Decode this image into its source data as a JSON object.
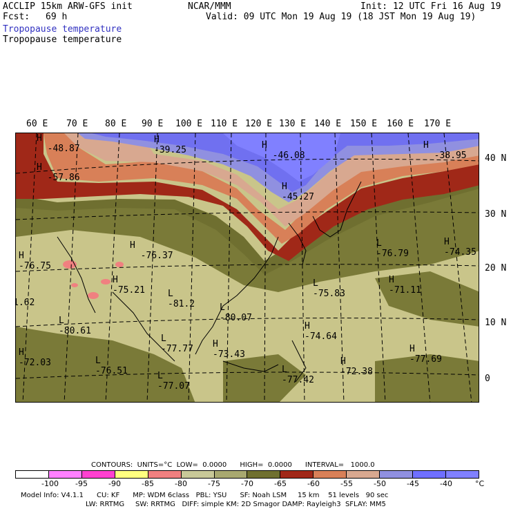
{
  "header": {
    "model": "ACCLIP 15km ARW-GFS init",
    "org": "NCAR/MMM",
    "init": "Init: 12 UTC Fri 16 Aug 19",
    "fcst_label": "Fcst:",
    "fcst_value": "69 h",
    "valid": "Valid: 09 UTC Mon 19 Aug 19 (18 JST Mon 19 Aug 19)",
    "field1": "Tropopause temperature",
    "field2": "Tropopause temperature"
  },
  "lon_labels": [
    "60 E",
    "70 E",
    "80 E",
    "90 E",
    "100 E",
    "110 E",
    "120 E",
    "130 E",
    "140 E",
    "150 E",
    "160 E",
    "170 E"
  ],
  "lat_labels": [
    "40 N",
    "30 N",
    "20 N",
    "10 N",
    "0"
  ],
  "extrema": [
    {
      "mark": "H",
      "value": "-48.87"
    },
    {
      "mark": "H",
      "value": "-39.25"
    },
    {
      "mark": "H",
      "value": "-46.08"
    },
    {
      "mark": "H",
      "value": "-38.95"
    },
    {
      "mark": "H",
      "value": "-57.86"
    },
    {
      "mark": "H",
      "value": "-45.27"
    },
    {
      "mark": "H",
      "value": "-76.37"
    },
    {
      "mark": "H",
      "value": "-76.75"
    },
    {
      "mark": "L",
      "value": "-76.79"
    },
    {
      "mark": "H",
      "value": "-74.35"
    },
    {
      "mark": "H",
      "value": "-75.21"
    },
    {
      "mark": "L",
      "value": "-81.2"
    },
    {
      "mark": "L",
      "value": "-80.07"
    },
    {
      "mark": "L",
      "value": "-75.83"
    },
    {
      "mark": "H",
      "value": "-71.11"
    },
    {
      "mark": "L",
      "value": "-80.61"
    },
    {
      "mark": "H",
      "value": "-74.64"
    },
    {
      "mark": "H",
      "value": "-72.03"
    },
    {
      "mark": "L",
      "value": "-76.51"
    },
    {
      "mark": "H",
      "value": "-73.43"
    },
    {
      "mark": "H",
      "value": "-72.38"
    },
    {
      "mark": "H",
      "value": "-77.69"
    },
    {
      "mark": "L",
      "value": "-77.77"
    },
    {
      "mark": "L",
      "value": "-77.07"
    },
    {
      "mark": "L",
      "value": "-77.42"
    },
    {
      "mark": "",
      "value": "1.62"
    }
  ],
  "contours": {
    "label": "CONTOURS:  UNITS=°C  LOW=  0.0000      HIGH=  0.0000      INTERVAL=   1000.0"
  },
  "colorbar": {
    "colors": [
      "#ffffff",
      "#ff80ff",
      "#ff40d0",
      "#ffff80",
      "#f08080",
      "#c8c898",
      "#a8a870",
      "#707030",
      "#a02818",
      "#d88058",
      "#d8a890",
      "#9090e0",
      "#6f6fff",
      "#6060f0",
      "#8080ff"
    ],
    "ticks": [
      "-100",
      "-95",
      "-90",
      "-85",
      "-80",
      "-75",
      "-70",
      "-65",
      "-60",
      "-55",
      "-50",
      "-45",
      "-40",
      "°C"
    ]
  },
  "footer": {
    "line1": "Model Info: V4.1.1      CU: KF      MP: WDM 6class   PBL: YSU      SF: Noah LSM     15 km    51 levels   90 sec",
    "line2": "LW: RRTMG     SW: RRTMG   DIFF: simple KM: 2D Smagor DAMP: Rayleigh3  SFLAY: MM5"
  }
}
